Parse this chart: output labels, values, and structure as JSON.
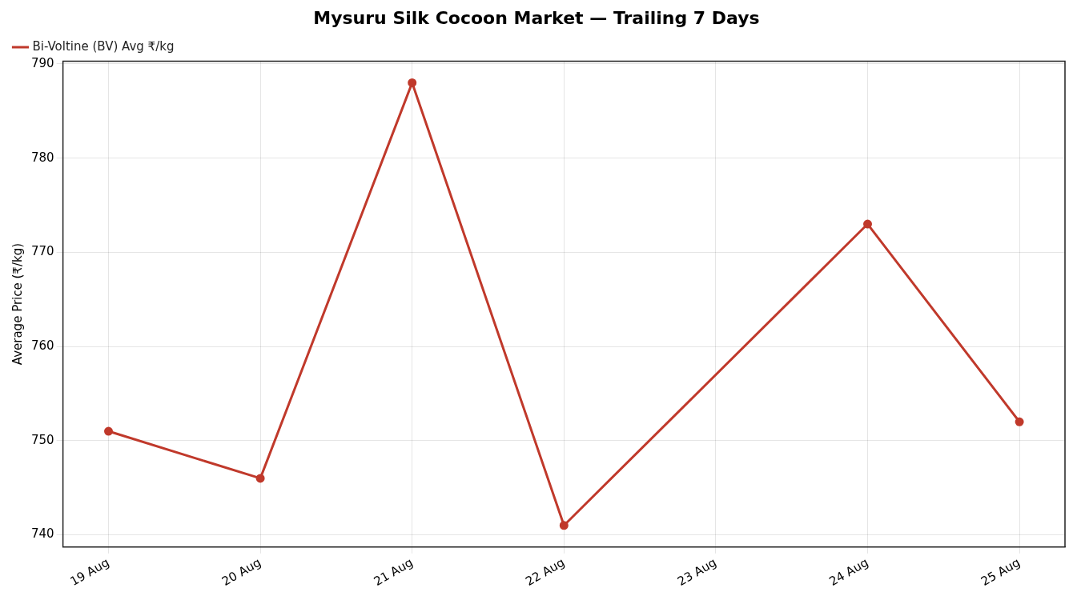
{
  "chart_data": {
    "type": "line",
    "title": "Mysuru Silk Cocoon Market — Trailing 7 Days",
    "ylabel": "Average Price (₹/kg)",
    "categories": [
      "19 Aug",
      "20 Aug",
      "21 Aug",
      "22 Aug",
      "23 Aug",
      "24 Aug",
      "25 Aug"
    ],
    "series": [
      {
        "name": "Bi-Voltine (BV) Avg ₹/kg",
        "color": "#c0392b",
        "values": [
          751,
          746,
          788,
          741,
          null,
          773,
          752
        ]
      }
    ],
    "ylim": [
      738.7,
      790.3
    ],
    "yticks": [
      740,
      750,
      760,
      770,
      780,
      790
    ],
    "grid": true,
    "legend": "top left",
    "marker": "circle",
    "line_style": "solid"
  }
}
